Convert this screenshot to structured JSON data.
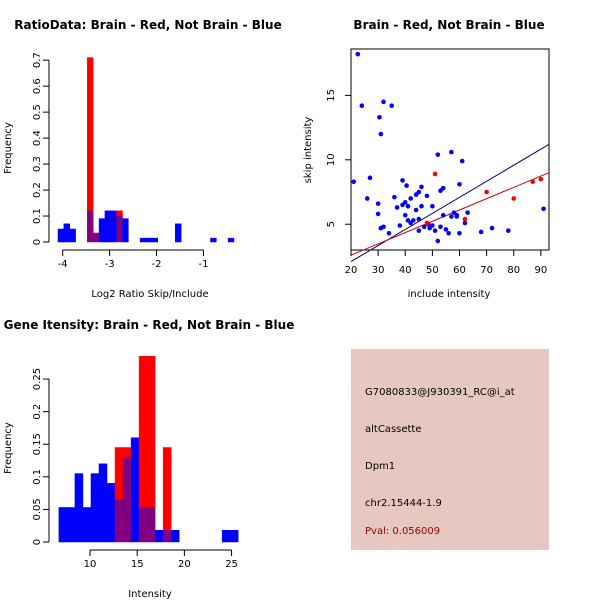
{
  "colors": {
    "brain": "#ff0000",
    "not_brain": "#0000ff",
    "overlap": "#800080",
    "info_bg": "#e6c8c0",
    "pval": "#990000"
  },
  "chart_data": [
    {
      "type": "histogram",
      "title": "RatioData: Brain - Red, Not Brain - Blue",
      "xlabel": "Log2 Ratio Skip/Include",
      "ylabel": "Frequency",
      "xlim": [
        -4.1,
        -0.2
      ],
      "ylim": [
        0,
        0.72
      ],
      "xticks": [
        -4,
        -3,
        -2,
        -1
      ],
      "yticks": [
        0,
        0.1,
        0.2,
        0.3,
        0.4,
        0.5,
        0.6,
        0.7
      ],
      "bin_width": 0.125,
      "bins_start": [
        -4.1,
        -3.975,
        -3.85,
        -3.725,
        -3.6,
        -3.475,
        -3.35,
        -3.225,
        -3.1,
        -2.975,
        -2.85,
        -2.725,
        -2.6,
        -2.475,
        -2.35,
        -2.225,
        -2.1,
        -1.975,
        -1.85,
        -1.725,
        -1.6,
        -1.475,
        -1.35,
        -0.85,
        -0.475
      ],
      "series": [
        {
          "name": "Not Brain",
          "values": [
            0.05,
            0.07,
            0.05,
            0,
            0,
            0.12,
            0.03,
            0.09,
            0.12,
            0.12,
            0.1,
            0.09,
            0,
            0,
            0.015,
            0.015,
            0.015,
            0,
            0,
            0,
            0.07,
            0,
            0,
            0.015,
            0.015
          ]
        },
        {
          "name": "Brain",
          "values": [
            0,
            0,
            0,
            0,
            0,
            0.71,
            0.035,
            0,
            0,
            0,
            0.12,
            0,
            0,
            0,
            0,
            0,
            0,
            0,
            0,
            0,
            0,
            0,
            0,
            0,
            0
          ]
        }
      ]
    },
    {
      "type": "scatter",
      "title": "Brain - Red, Not Brain - Blue",
      "xlabel": "include intensity",
      "ylabel": "skip intensity",
      "xlim": [
        20,
        93
      ],
      "ylim": [
        3,
        18.6
      ],
      "xticks": [
        20,
        30,
        40,
        50,
        60,
        70,
        80,
        90
      ],
      "yticks": [
        5,
        10,
        15
      ],
      "series": [
        {
          "name": "Not Brain",
          "x": [
            21,
            22.5,
            24,
            26,
            27,
            30,
            30,
            30.5,
            31,
            31,
            32,
            32,
            34,
            35,
            36,
            37,
            38,
            39,
            39,
            40,
            40,
            40.5,
            41,
            41,
            42,
            42,
            43,
            44,
            44,
            45,
            45,
            45,
            46,
            46,
            47,
            48,
            48.5,
            49,
            50,
            50,
            51,
            52,
            52,
            53,
            53,
            54,
            54,
            55,
            56,
            57,
            57,
            58,
            59,
            59,
            60,
            60,
            61,
            62,
            63,
            68,
            72,
            78,
            91
          ],
          "y": [
            8.3,
            18.2,
            14.2,
            7,
            8.6,
            5.8,
            6.6,
            13.3,
            12,
            4.7,
            4.8,
            14.5,
            4.3,
            14.2,
            7.1,
            6.3,
            4.9,
            6.5,
            8.4,
            5.7,
            6.7,
            8,
            5.3,
            6.4,
            7,
            5.1,
            5.3,
            7.3,
            6.1,
            4.5,
            5.4,
            7.5,
            6.4,
            7.9,
            4.8,
            7.2,
            5,
            4.7,
            6.4,
            4.9,
            4.5,
            10.4,
            3.7,
            7.6,
            4.8,
            5.7,
            7.8,
            4.6,
            4.3,
            5.6,
            10.6,
            5.9,
            5.6,
            5.7,
            4.3,
            8.1,
            9.9,
            5.1,
            5.9,
            4.4,
            4.7,
            4.5,
            6.2
          ]
        },
        {
          "name": "Brain",
          "x": [
            48,
            51,
            62,
            70,
            80,
            87,
            90
          ],
          "y": [
            5.1,
            8.9,
            5.4,
            7.5,
            7,
            8.3,
            8.5
          ]
        }
      ],
      "fit_lines": [
        {
          "name": "Not Brain fit",
          "x": [
            20,
            93
          ],
          "y": [
            2.1,
            11.2
          ]
        },
        {
          "name": "Brain fit",
          "x": [
            20,
            93
          ],
          "y": [
            2.6,
            9.0
          ]
        }
      ]
    },
    {
      "type": "histogram",
      "title": "Gene Itensity: Brain - Red, Not Brain - Blue",
      "xlabel": "Intensity",
      "ylabel": "Frequency",
      "xlim": [
        6.5,
        26
      ],
      "ylim": [
        0,
        0.29
      ],
      "xticks": [
        10,
        15,
        20,
        25
      ],
      "yticks": [
        0,
        0.05,
        0.1,
        0.15,
        0.2,
        0.25
      ],
      "bin_width": 0.85,
      "bins_start": [
        6.7,
        7.55,
        8.4,
        9.25,
        10.1,
        10.95,
        11.8,
        12.65,
        13.5,
        14.35,
        15.2,
        16.05,
        16.9,
        17.75,
        18.6,
        24.0,
        24.85
      ],
      "series": [
        {
          "name": "Not Brain",
          "values": [
            0.053,
            0.053,
            0.105,
            0.053,
            0.105,
            0.12,
            0.09,
            0.065,
            0.13,
            0.16,
            0.053,
            0.053,
            0.018,
            0.018,
            0.018,
            0.018,
            0.018
          ]
        },
        {
          "name": "Brain",
          "values": [
            0,
            0,
            0,
            0,
            0,
            0,
            0,
            0.145,
            0.145,
            0,
            0.285,
            0.285,
            0,
            0.145,
            0,
            0,
            0
          ]
        }
      ]
    }
  ],
  "info_panel": {
    "probe_id": "G7080833@J930391_RC@i_at",
    "event_type": "altCassette",
    "gene": "Dpm1",
    "location": "chr2.15444-1.9",
    "pval": "Pval: 0.056009"
  }
}
